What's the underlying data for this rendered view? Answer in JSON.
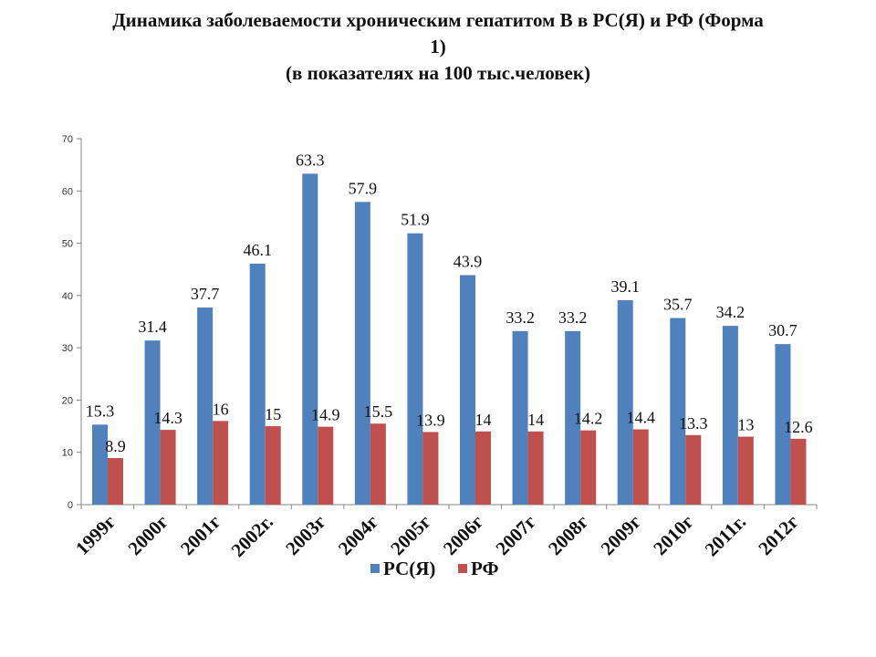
{
  "chart_data": {
    "type": "bar",
    "title_line1": "Динамика заболеваемости хроническим гепатитом В в РС(Я) и РФ (Форма",
    "title_line2": "1)",
    "subtitle": "(в показателях на 100 тыс.человек)",
    "categories": [
      "1999г",
      "2000г",
      "2001г",
      "2002г.",
      "2003г",
      "2004г",
      "2005г",
      "2006г",
      "2007г",
      "2008г",
      "2009г",
      "2010г",
      "2011г.",
      "2012г"
    ],
    "series": [
      {
        "name": "РС(Я)",
        "color": "#4F81BD",
        "values": [
          15.3,
          31.4,
          37.7,
          46.1,
          63.3,
          57.9,
          51.9,
          43.9,
          33.2,
          33.2,
          39.1,
          35.7,
          34.2,
          30.7
        ]
      },
      {
        "name": "РФ",
        "color": "#C0504D",
        "values": [
          8.9,
          14.3,
          16,
          15,
          14.9,
          15.5,
          13.9,
          14,
          14,
          14.2,
          14.4,
          13.3,
          13,
          12.6
        ]
      }
    ],
    "ylim": [
      0,
      70
    ],
    "yticks": [
      0,
      10,
      20,
      30,
      40,
      50,
      60,
      70
    ],
    "grid": false,
    "legend_position": "bottom"
  }
}
